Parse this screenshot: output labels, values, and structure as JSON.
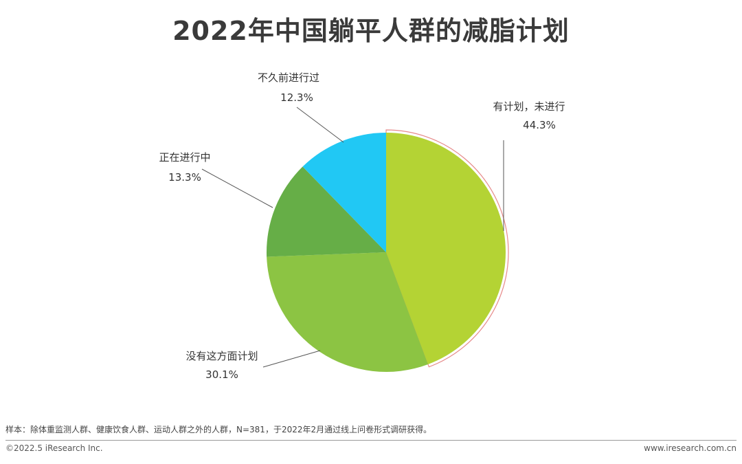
{
  "title": "2022年中国躺平人群的减脂计划",
  "chart_data": {
    "type": "pie",
    "title": "2022年中国躺平人群的减脂计划",
    "slices": [
      {
        "label": "有计划，未进行",
        "value": 44.3,
        "value_label": "44.3%",
        "color": "#b4d334"
      },
      {
        "label": "没有这方面计划",
        "value": 30.1,
        "value_label": "30.1%",
        "color": "#8cc443"
      },
      {
        "label": "正在进行中",
        "value": 13.3,
        "value_label": "13.3%",
        "color": "#66ae47"
      },
      {
        "label": "不久前进行过",
        "value": 12.3,
        "value_label": "12.3%",
        "color": "#21c8f4"
      }
    ],
    "start": "12 o'clock",
    "direction": "clockwise",
    "highlight": "有计划，未进行"
  },
  "footer": {
    "note": "样本：除体重监测人群、健康饮食人群、运动人群之外的人群，N=381，于2022年2月通过线上问卷形式调研获得。",
    "copyright": "©2022.5 iResearch Inc.",
    "website": "www.iresearch.com.cn"
  }
}
